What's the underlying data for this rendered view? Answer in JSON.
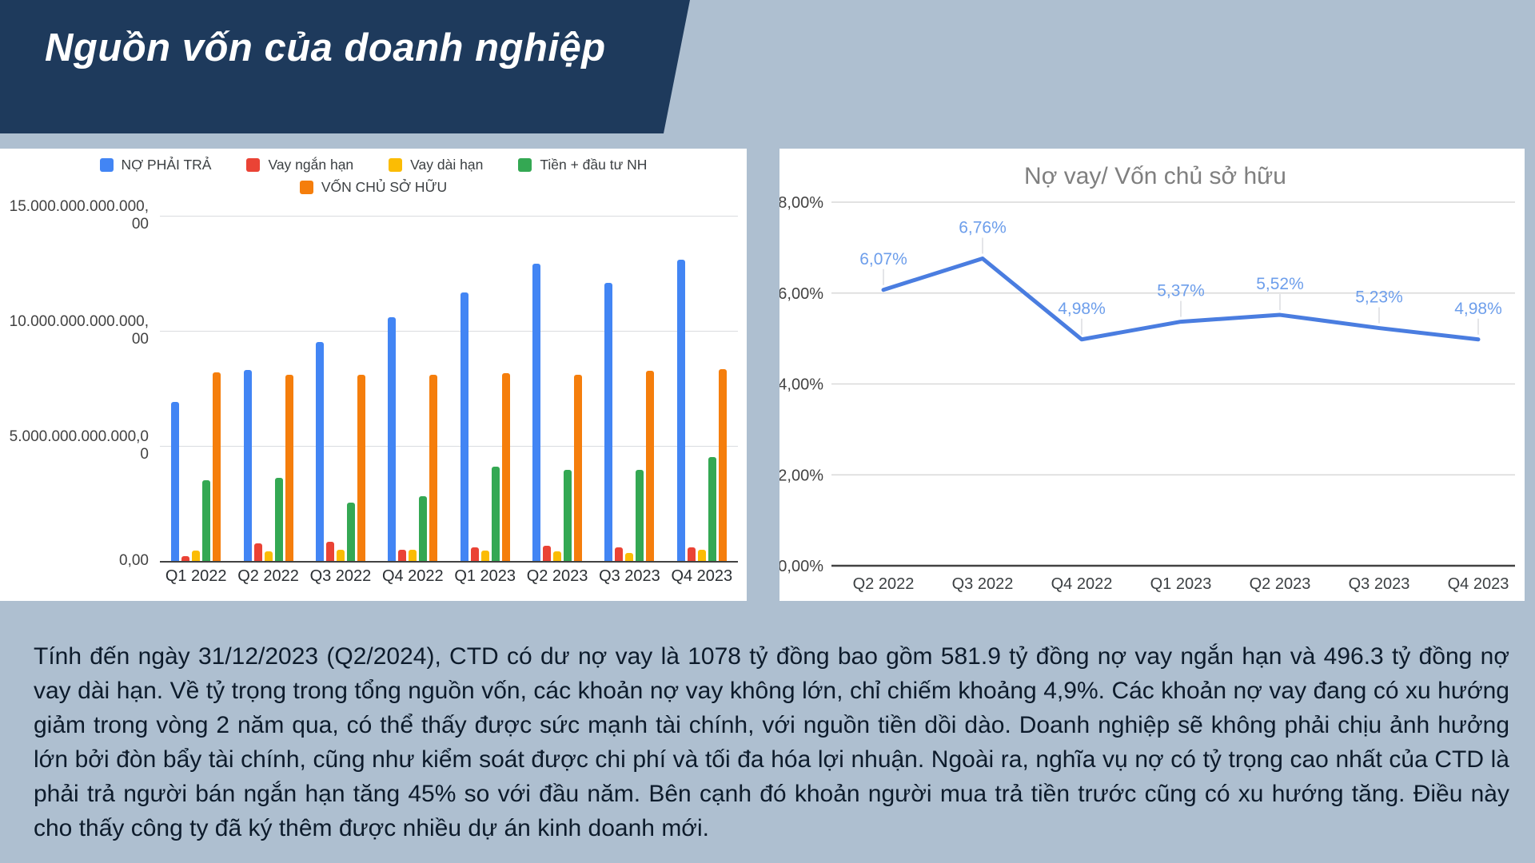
{
  "slide": {
    "title": "Nguồn vốn của doanh nghiệp",
    "background_color": "#AEBFD0",
    "banner_color": "#1E3A5C"
  },
  "chart_data": [
    {
      "type": "bar",
      "title": "",
      "categories": [
        "Q1 2022",
        "Q2 2022",
        "Q3 2022",
        "Q4 2022",
        "Q1 2023",
        "Q2 2023",
        "Q3 2023",
        "Q4 2023"
      ],
      "series": [
        {
          "name": "NỢ PHẢI TRẢ",
          "color": "#4285F4",
          "values": [
            6900000000000,
            8300000000000,
            9500000000000,
            10600000000000,
            11650000000000,
            12900000000000,
            12100000000000,
            13100000000000
          ]
        },
        {
          "name": "Vay ngắn hạn",
          "color": "#EA4335",
          "values": [
            200000000000,
            750000000000,
            850000000000,
            500000000000,
            600000000000,
            650000000000,
            600000000000,
            581900000000
          ]
        },
        {
          "name": "Vay dài hạn",
          "color": "#FBBC04",
          "values": [
            450000000000,
            400000000000,
            500000000000,
            500000000000,
            450000000000,
            400000000000,
            350000000000,
            496300000000
          ]
        },
        {
          "name": "Tiền + đầu tư NH",
          "color": "#34A853",
          "values": [
            3500000000000,
            3600000000000,
            2550000000000,
            2800000000000,
            4100000000000,
            3950000000000,
            3950000000000,
            4500000000000
          ]
        },
        {
          "name": "VỐN CHỦ SỞ HỮU",
          "color": "#F57E0C",
          "values": [
            8200000000000,
            8100000000000,
            8100000000000,
            8100000000000,
            8150000000000,
            8100000000000,
            8250000000000,
            8350000000000
          ]
        }
      ],
      "legend_rows": [
        [
          0,
          1,
          2,
          3
        ],
        [
          4
        ]
      ],
      "ylim": [
        0,
        15000000000000
      ],
      "y_ticks": [
        {
          "value": 15000000000000,
          "label": "15.000.000.000.000,\n00"
        },
        {
          "value": 10000000000000,
          "label": "10.000.000.000.000,\n00"
        },
        {
          "value": 5000000000000,
          "label": "5.000.000.000.000,0\n0"
        },
        {
          "value": 0,
          "label": "0,00"
        }
      ],
      "grid": true,
      "legend_position": "top"
    },
    {
      "type": "line",
      "title": "Nợ vay/ Vốn chủ sở hữu",
      "categories": [
        "Q2 2022",
        "Q3 2022",
        "Q4 2022",
        "Q1 2023",
        "Q2 2023",
        "Q3 2023",
        "Q4 2023"
      ],
      "values": [
        6.07,
        6.76,
        4.98,
        5.37,
        5.52,
        5.23,
        4.98
      ],
      "point_labels": [
        "6,07%",
        "6,76%",
        "4,98%",
        "5,37%",
        "5,52%",
        "5,23%",
        "4,98%"
      ],
      "ylim": [
        0,
        8
      ],
      "y_ticks": [
        {
          "value": 8,
          "label": "8,00%"
        },
        {
          "value": 6,
          "label": "6,00%"
        },
        {
          "value": 4,
          "label": "4,00%"
        },
        {
          "value": 2,
          "label": "2,00%"
        },
        {
          "value": 0,
          "label": "0,00%"
        }
      ],
      "grid": true,
      "line_color": "#4A7DE0",
      "label_color": "#6D9EEB",
      "title_color": "#7F7F7F"
    }
  ],
  "paragraph": {
    "text": "Tính đến ngày 31/12/2023 (Q2/2024), CTD có dư nợ vay là 1078 tỷ đồng bao gồm 581.9 tỷ đồng nợ vay ngắn hạn và 496.3 tỷ đồng nợ vay dài hạn. Về tỷ trọng trong tổng nguồn vốn, các khoản nợ vay không lớn, chỉ chiếm khoảng 4,9%. Các khoản nợ vay đang có xu hướng giảm trong vòng 2 năm qua, có thể thấy được sức mạnh tài chính, với nguồn tiền dồi dào. Doanh nghiệp sẽ không phải chịu ảnh hưởng lớn bởi đòn bẩy tài chính, cũng như kiểm soát được chi phí và tối đa hóa lợi nhuận. Ngoài ra, nghĩa vụ nợ có tỷ trọng cao nhất của CTD là phải trả người bán ngắn hạn tăng 45% so với đầu năm. Bên cạnh đó khoản người mua trả tiền trước cũng có xu hướng tăng. Điều này cho thấy công ty đã ký thêm được nhiều dự án kinh doanh mới."
  }
}
